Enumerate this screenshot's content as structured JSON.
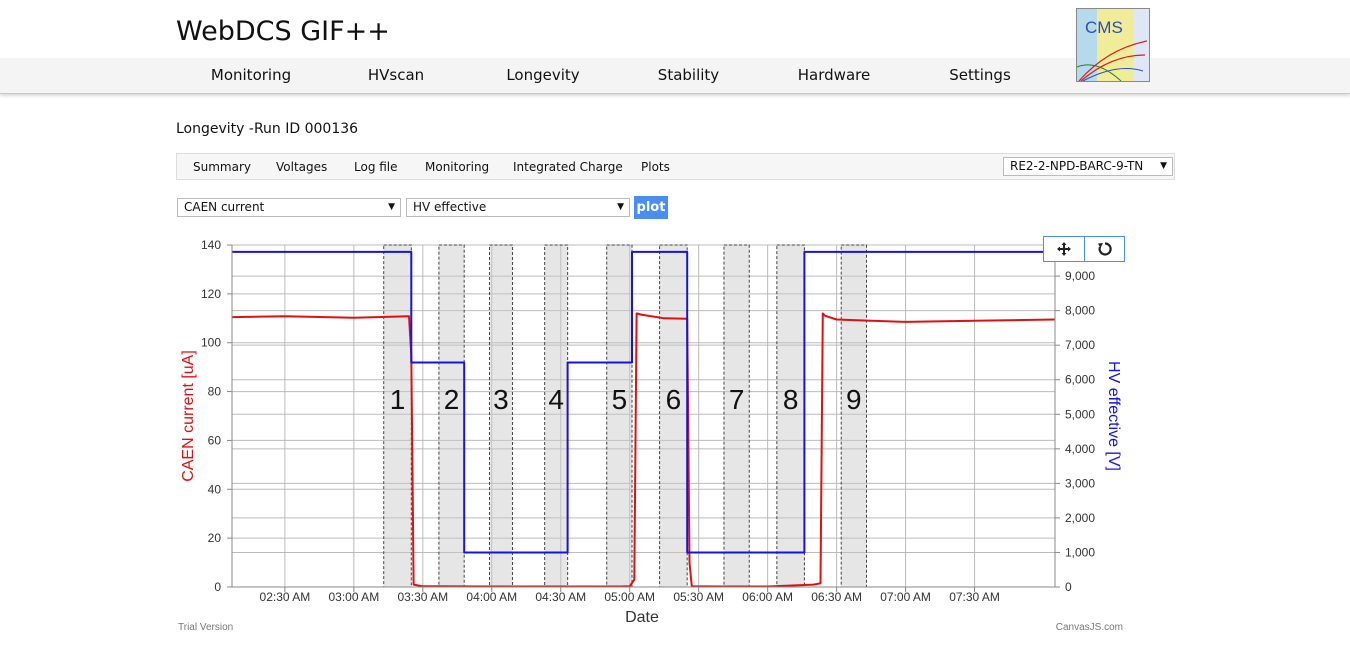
{
  "app": {
    "title": "WebDCS GIF++"
  },
  "nav": {
    "items": [
      "Monitoring",
      "HVscan",
      "Longevity",
      "Stability",
      "Hardware",
      "Settings"
    ]
  },
  "logo": {
    "text": "CMS"
  },
  "run": {
    "title": "Longevity -Run ID 000136"
  },
  "subnav": {
    "items": [
      "Summary",
      "Voltages",
      "Log file",
      "Monitoring",
      "Integrated Charge",
      "Plots"
    ],
    "chamber_select": "RE2-2-NPD-BARC-9-TN"
  },
  "controls": {
    "left_select": "CAEN current",
    "right_select": "HV effective",
    "plot_label": "plot"
  },
  "tools": {
    "pan_icon": "move-icon",
    "reset_icon": "reset-icon"
  },
  "footer": {
    "left": "Trial Version",
    "right": "CanvasJS.com"
  },
  "chart_data": {
    "type": "line",
    "xlabel": "Date",
    "ylabel": "CAEN current [uA]",
    "y2label": "HV effective [V]",
    "xlim": [
      "02:07",
      "08:05"
    ],
    "ylim": [
      0,
      140
    ],
    "y2lim": [
      0,
      9900
    ],
    "x_ticks": [
      "02:30 AM",
      "03:00 AM",
      "03:30 AM",
      "04:00 AM",
      "04:30 AM",
      "05:00 AM",
      "05:30 AM",
      "06:00 AM",
      "06:30 AM",
      "07:00 AM",
      "07:30 AM"
    ],
    "x_tick_times": [
      "02:30",
      "03:00",
      "03:30",
      "04:00",
      "04:30",
      "05:00",
      "05:30",
      "06:00",
      "06:30",
      "07:00",
      "07:30"
    ],
    "y_ticks": [
      "0",
      "20",
      "40",
      "60",
      "80",
      "100",
      "120",
      "140"
    ],
    "y_tick_values": [
      0,
      20,
      40,
      60,
      80,
      100,
      120,
      140
    ],
    "y2_ticks": [
      "0",
      "1,000",
      "2,000",
      "3,000",
      "4,000",
      "5,000",
      "6,000",
      "7,000",
      "8,000",
      "9,000"
    ],
    "y2_tick_values": [
      0,
      1000,
      2000,
      3000,
      4000,
      5000,
      6000,
      7000,
      8000,
      9000
    ],
    "grid": true,
    "bands": [
      {
        "label": "1",
        "start": "03:13",
        "end": "03:25"
      },
      {
        "label": "2",
        "start": "03:37",
        "end": "03:48"
      },
      {
        "label": "3",
        "start": "03:59",
        "end": "04:09"
      },
      {
        "label": "4",
        "start": "04:23",
        "end": "04:33"
      },
      {
        "label": "5",
        "start": "04:50",
        "end": "05:01"
      },
      {
        "label": "6",
        "start": "05:13",
        "end": "05:25"
      },
      {
        "label": "7",
        "start": "05:41",
        "end": "05:52"
      },
      {
        "label": "8",
        "start": "06:04",
        "end": "06:16"
      },
      {
        "label": "9",
        "start": "06:32",
        "end": "06:43"
      }
    ],
    "series": [
      {
        "name": "CAEN current",
        "axis": "left",
        "color": "#e01010",
        "x": [
          "02:07",
          "02:30",
          "03:00",
          "03:24",
          "03:25",
          "03:26",
          "03:30",
          "04:00",
          "04:30",
          "04:56",
          "05:00",
          "05:02",
          "05:03",
          "05:05",
          "05:15",
          "05:25",
          "05:26",
          "05:27",
          "05:40",
          "06:00",
          "06:20",
          "06:23",
          "06:24",
          "06:25",
          "06:30",
          "06:45",
          "07:00",
          "07:30",
          "08:05"
        ],
        "y": [
          110.5,
          110.8,
          110.2,
          110.8,
          95,
          1,
          0.3,
          0.2,
          0.2,
          0.2,
          0.3,
          3,
          112,
          111.5,
          110,
          109.8,
          10,
          0.3,
          0.2,
          0.2,
          1,
          1.5,
          112,
          111,
          109.5,
          109,
          108.5,
          109,
          109.5
        ]
      },
      {
        "name": "HV effective",
        "axis": "right",
        "color": "#1414e0",
        "x": [
          "02:07",
          "03:25",
          "03:25",
          "03:48",
          "03:48",
          "04:33",
          "04:33",
          "05:01",
          "05:01",
          "05:25",
          "05:25",
          "06:16",
          "06:16",
          "08:05"
        ],
        "y": [
          9700,
          9700,
          6500,
          6500,
          1000,
          1000,
          6500,
          6500,
          9700,
          9700,
          1000,
          1000,
          9700,
          9700
        ]
      }
    ]
  }
}
